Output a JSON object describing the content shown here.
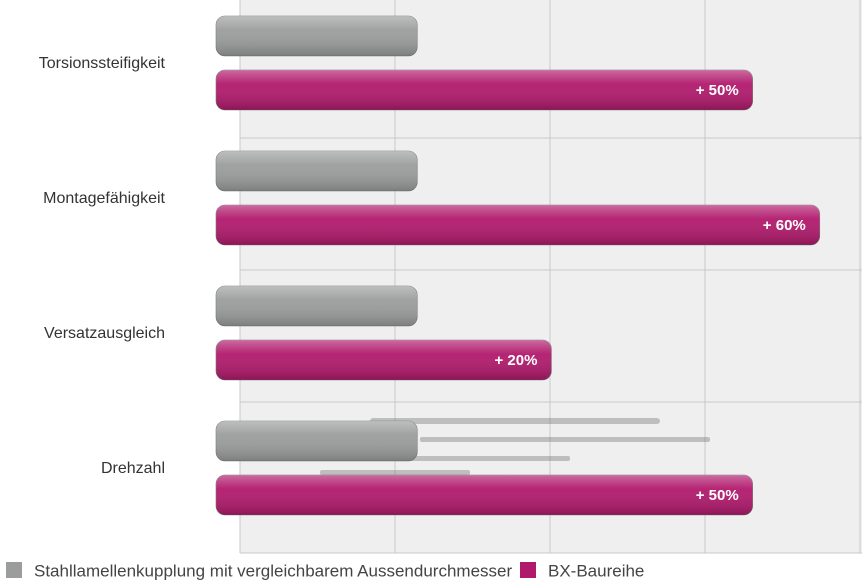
{
  "chart_data": {
    "type": "barh",
    "categories": [
      "Torsionssteifigkeit",
      "Montagefähigkeit",
      "Versatzausgleich",
      "Drehzahl"
    ],
    "series": [
      {
        "name": "Stahllamellenkupplung mit vergleichbarem Aussendurchmesser",
        "color": "#9b9d9c",
        "values": [
          0,
          0,
          0,
          0
        ]
      },
      {
        "name": "BX-Baureihe",
        "color": "#b1196c",
        "values": [
          50,
          60,
          20,
          50
        ],
        "value_labels": [
          "+ 50%",
          "+ 60%",
          "+ 20%",
          "+ 50%"
        ]
      }
    ],
    "xlim": [
      -30,
      66
    ]
  }
}
